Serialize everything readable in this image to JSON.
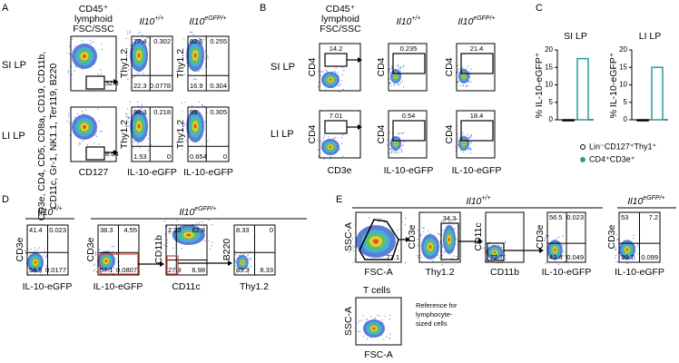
{
  "panel_labels": [
    "A",
    "B",
    "C",
    "D",
    "E"
  ],
  "a": {
    "title": [
      "CD45⁺",
      "lymphoid",
      "FSC/SSC"
    ],
    "lineage": [
      "CD3e, CD4, CD5, CD8a, CD19, CD11b,",
      "CD11c, Gr-1, NK1.1, Ter119, B220"
    ],
    "genotypes": [
      {
        "base": "Il10",
        "sup": "+/+"
      },
      {
        "base": "Il10",
        "sup": "eGFP/+"
      }
    ],
    "rows": [
      {
        "label": "SI LP",
        "gate": 32.8,
        "quads": [
          [
            77.4,
            0.302,
            22.3,
            0.0778
          ],
          [
            82.5,
            0.255,
            16.9,
            0.304
          ]
        ]
      },
      {
        "label": "LI LP",
        "gate": 8.64,
        "quads": [
          [
            98.3,
            0.218,
            1.53,
            0
          ],
          [
            99,
            0.305,
            0.654,
            0
          ]
        ]
      }
    ],
    "x_labels": [
      "CD127",
      "IL-10-eGFP",
      "IL-10-eGFP"
    ],
    "y_label": "Thy1.2"
  },
  "b": {
    "title": [
      "CD45⁺",
      "lymphoid",
      "FSC/SSC"
    ],
    "genotypes": [
      {
        "base": "Il10",
        "sup": "+/+"
      },
      {
        "base": "Il10",
        "sup": "eGFP/+"
      }
    ],
    "rows": [
      {
        "label": "SI LP",
        "gate": 14.2,
        "values": [
          0.235,
          21.4
        ]
      },
      {
        "label": "LI LP",
        "gate": 7.01,
        "values": [
          0.54,
          18.4
        ]
      }
    ],
    "x_labels": [
      "CD3e",
      "IL-10-eGFP",
      "IL-10-eGFP"
    ],
    "y_label": "CD4"
  },
  "chart_data": [
    {
      "type": "bar",
      "title": "SI LP",
      "y_label": "% IL-10-eGFP⁺",
      "categories": [
        null
      ],
      "ylim": [
        0,
        20
      ],
      "yticks": [
        0,
        5,
        10,
        15,
        20
      ],
      "series": [
        {
          "name": "Lin⁻CD127⁺Thy1⁺",
          "color": "#000000",
          "values": [
            0
          ]
        },
        {
          "name": "CD4⁺CD3e⁺",
          "color": "#2a9d9a",
          "values": [
            17.5
          ]
        }
      ]
    },
    {
      "type": "bar",
      "title": "LI LP",
      "y_label": "% IL-10-eGFP⁺",
      "categories": [
        null
      ],
      "ylim": [
        0,
        20
      ],
      "yticks": [
        0,
        5,
        10,
        15,
        20
      ],
      "series": [
        {
          "color": "#000000",
          "values": [
            0
          ]
        },
        {
          "color": "#2a9d9a",
          "values": [
            15
          ]
        }
      ]
    }
  ],
  "d": {
    "genotypes": [
      {
        "base": "Il10",
        "sup": "+/+"
      },
      {
        "base": "Il10",
        "sup": "eGFP/+"
      }
    ],
    "plots": [
      {
        "x_label": "IL-10-eGFP",
        "y_label": "CD3e",
        "quads": [
          41.4,
          0.023,
          58.5,
          0.0177
        ]
      },
      {
        "x_label": "IL-10-eGFP",
        "y_label": "CD3e",
        "quads": [
          38.3,
          4.55,
          57.1,
          0.0807
        ]
      },
      {
        "x_label": "CD11c",
        "y_label": "CD11b",
        "quads": [
          2.33,
          62.8,
          27.9,
          6.98
        ]
      },
      {
        "x_label": "Thy1.2",
        "y_label": "B220",
        "quads": [
          8.33,
          0,
          83.3,
          8.33
        ]
      }
    ]
  },
  "e": {
    "genotypes": [
      {
        "base": "Il10",
        "sup": "+/+"
      },
      {
        "base": "Il10",
        "sup": "eGFP/+"
      }
    ],
    "plots": [
      {
        "x_label": "FSC-A",
        "y_label": "SSC-A",
        "gate": 77.1
      },
      {
        "x_label": "Thy1.2",
        "y_label": "CD3e",
        "gate": 34.3
      },
      {
        "x_label": "CD11b",
        "y_label": "CD11c",
        "gate": 72.7
      },
      {
        "x_label": "IL-10-eGFP",
        "y_label": "CD3e",
        "quads": [
          56.5,
          0.023,
          43.4,
          0.049
        ]
      },
      {
        "x_label": "IL-10-eGFP",
        "y_label": "CD3e",
        "quads": [
          53,
          7.2,
          39.7,
          0.099
        ]
      }
    ],
    "reference": {
      "title": "T cells",
      "x_label": "FSC-A",
      "y_label": "SSC-A",
      "note": [
        "Reference for",
        "lymphocyte-",
        "sized cells"
      ]
    }
  }
}
